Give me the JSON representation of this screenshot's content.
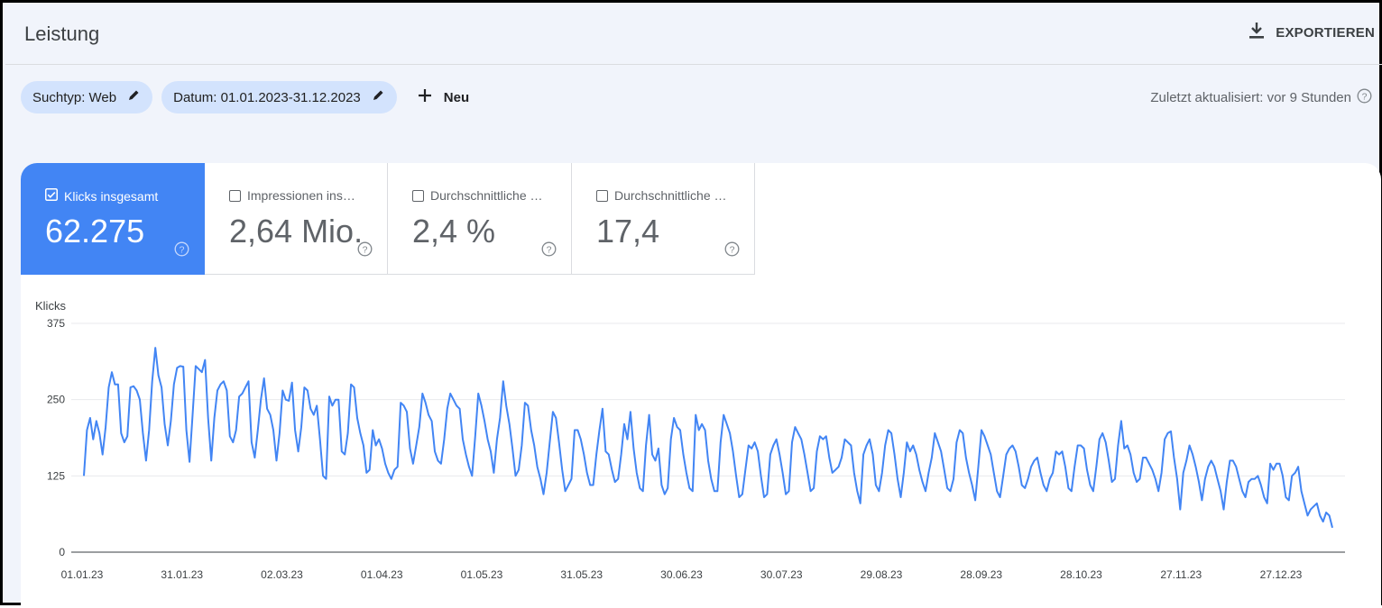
{
  "header": {
    "title": "Leistung",
    "export_label": "EXPORTIEREN"
  },
  "filters": {
    "search_type": "Suchtyp: Web",
    "date": "Datum: 01.01.2023-31.12.2023",
    "new_label": "Neu"
  },
  "updated_text": "Zuletzt aktualisiert: vor 9 Stunden",
  "metrics": [
    {
      "label": "Klicks insgesamt",
      "value": "62.275",
      "checked": true
    },
    {
      "label": "Impressionen ins…",
      "value": "2,64 Mio.",
      "checked": false
    },
    {
      "label": "Durchschnittliche …",
      "value": "2,4 %",
      "checked": false
    },
    {
      "label": "Durchschnittliche …",
      "value": "17,4",
      "checked": false
    }
  ],
  "colors": {
    "accent": "#4285f4",
    "chip": "#d3e3fd",
    "line": "#4285f4"
  },
  "chart_data": {
    "type": "line",
    "ylabel": "Klicks",
    "ylim": [
      0,
      375
    ],
    "yticks": [
      "0",
      "125",
      "250",
      "375"
    ],
    "xticks": [
      "01.01.23",
      "31.01.23",
      "02.03.23",
      "01.04.23",
      "01.05.23",
      "31.05.23",
      "30.06.23",
      "30.07.23",
      "29.08.23",
      "28.09.23",
      "28.10.23",
      "27.11.23",
      "27.12.23"
    ],
    "grid": true,
    "series": [
      {
        "values": [
          125,
          200,
          220,
          185,
          215,
          195,
          160,
          205,
          270,
          295,
          275,
          275,
          195,
          180,
          190,
          270,
          272,
          265,
          250,
          195,
          150,
          200,
          280,
          335,
          290,
          270,
          210,
          175,
          215,
          275,
          302,
          305,
          304,
          200,
          148,
          225,
          305,
          300,
          295,
          315,
          220,
          150,
          220,
          265,
          275,
          280,
          265,
          190,
          180,
          200,
          255,
          260,
          270,
          280,
          180,
          155,
          200,
          250,
          285,
          235,
          225,
          200,
          150,
          195,
          265,
          250,
          248,
          278,
          200,
          165,
          205,
          270,
          265,
          235,
          225,
          240,
          185,
          125,
          120,
          255,
          240,
          250,
          250,
          165,
          160,
          195,
          275,
          270,
          220,
          195,
          175,
          130,
          135,
          200,
          175,
          185,
          170,
          145,
          130,
          120,
          135,
          140,
          245,
          240,
          230,
          170,
          145,
          175,
          205,
          260,
          245,
          225,
          215,
          165,
          150,
          145,
          185,
          235,
          260,
          250,
          240,
          235,
          185,
          160,
          140,
          125,
          190,
          260,
          240,
          215,
          185,
          165,
          130,
          185,
          220,
          280,
          240,
          210,
          170,
          125,
          135,
          175,
          245,
          240,
          200,
          175,
          140,
          120,
          95,
          130,
          180,
          230,
          220,
          180,
          135,
          100,
          110,
          120,
          200,
          200,
          185,
          160,
          130,
          110,
          110,
          160,
          200,
          235,
          165,
          160,
          135,
          115,
          120,
          160,
          210,
          185,
          230,
          170,
          130,
          105,
          100,
          175,
          225,
          160,
          150,
          170,
          110,
          95,
          105,
          185,
          220,
          205,
          200,
          160,
          130,
          105,
          100,
          225,
          200,
          210,
          200,
          150,
          120,
          100,
          100,
          180,
          225,
          210,
          195,
          165,
          125,
          90,
          95,
          135,
          175,
          170,
          180,
          165,
          125,
          90,
          95,
          160,
          175,
          185,
          160,
          130,
          95,
          100,
          180,
          205,
          195,
          185,
          160,
          130,
          100,
          105,
          165,
          190,
          185,
          190,
          155,
          130,
          135,
          140,
          155,
          185,
          180,
          175,
          130,
          100,
          80,
          160,
          175,
          185,
          160,
          110,
          100,
          130,
          175,
          200,
          195,
          160,
          120,
          90,
          130,
          180,
          165,
          175,
          160,
          135,
          115,
          100,
          130,
          155,
          195,
          180,
          165,
          135,
          105,
          100,
          120,
          180,
          200,
          195,
          155,
          130,
          110,
          85,
          140,
          200,
          190,
          175,
          160,
          130,
          100,
          90,
          125,
          160,
          170,
          175,
          165,
          140,
          110,
          105,
          120,
          140,
          150,
          155,
          130,
          110,
          100,
          120,
          130,
          165,
          160,
          165,
          140,
          105,
          100,
          140,
          175,
          175,
          170,
          135,
          110,
          100,
          140,
          185,
          195,
          180,
          150,
          115,
          120,
          175,
          215,
          170,
          175,
          160,
          130,
          115,
          120,
          155,
          155,
          145,
          135,
          120,
          100,
          130,
          185,
          195,
          198,
          155,
          120,
          70,
          130,
          150,
          175,
          160,
          140,
          115,
          85,
          120,
          140,
          150,
          140,
          120,
          100,
          70,
          115,
          150,
          150,
          140,
          120,
          100,
          90,
          115,
          120,
          120,
          125,
          110,
          90,
          80,
          145,
          135,
          145,
          145,
          125,
          90,
          85,
          125,
          130,
          140,
          100,
          80,
          60,
          70,
          75,
          80,
          60,
          50,
          65,
          60,
          40
        ]
      }
    ]
  }
}
